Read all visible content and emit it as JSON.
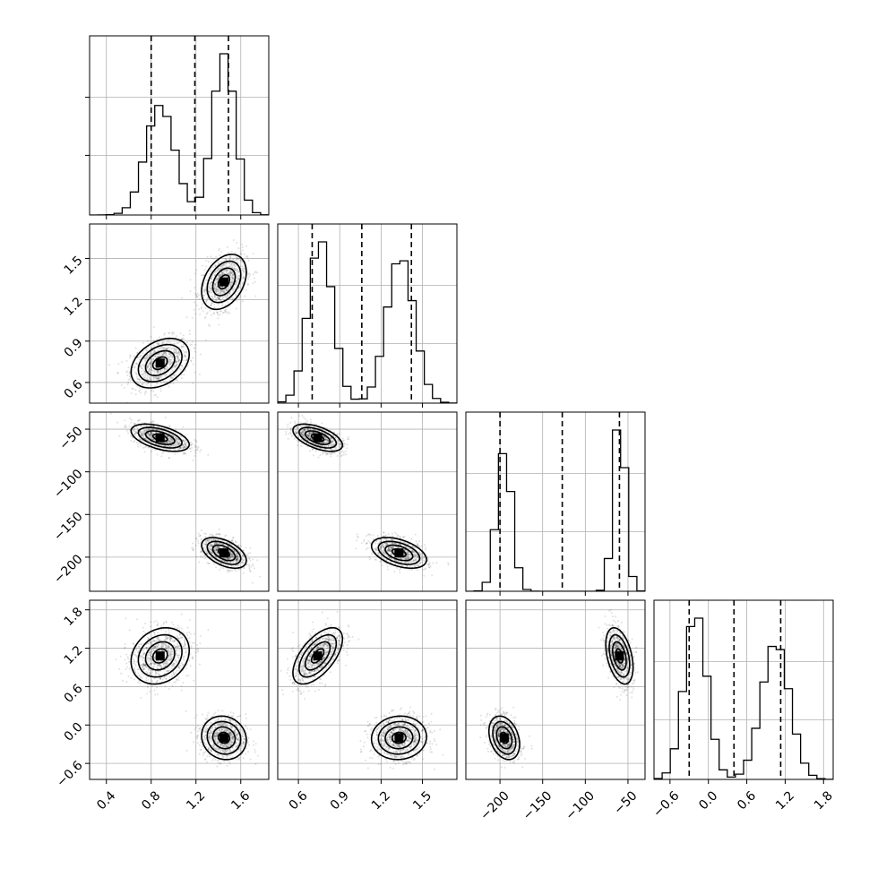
{
  "chart_data": {
    "type": "corner",
    "title": "",
    "parameters": [
      {
        "label": "",
        "range": [
          0.25,
          1.85
        ],
        "ticks": [
          "0.4",
          "0.8",
          "1.2",
          "1.6"
        ],
        "tick_values": [
          0.4,
          0.8,
          1.2,
          1.6
        ],
        "modes": [
          {
            "center": 0.88,
            "width": 0.13,
            "weight": 0.47
          },
          {
            "center": 1.45,
            "width": 0.1,
            "weight": 0.53
          }
        ],
        "quantiles": [
          0.8,
          1.19,
          1.49
        ]
      },
      {
        "label": "",
        "range": [
          0.45,
          1.75
        ],
        "ticks": [
          "0.6",
          "0.9",
          "1.2",
          "1.5"
        ],
        "tick_values": [
          0.6,
          0.9,
          1.2,
          1.5
        ],
        "modes": [
          {
            "center": 0.76,
            "width": 0.09,
            "weight": 0.5
          },
          {
            "center": 1.34,
            "width": 0.1,
            "weight": 0.5
          }
        ],
        "quantiles": [
          0.7,
          1.06,
          1.42
        ]
      },
      {
        "label": "",
        "range": [
          -240,
          -30
        ],
        "ticks": [
          "−200",
          "−150",
          "−100",
          "−50"
        ],
        "tick_values": [
          -200,
          -150,
          -100,
          -50
        ],
        "modes": [
          {
            "center": -195,
            "width": 9,
            "weight": 0.5
          },
          {
            "center": -60,
            "width": 7,
            "weight": 0.5
          }
        ],
        "quantiles": [
          -200,
          -127,
          -60
        ]
      },
      {
        "label": "",
        "range": [
          -0.85,
          1.95
        ],
        "ticks": [
          "−0.6",
          "0.0",
          "0.6",
          "1.2",
          "1.8"
        ],
        "tick_values": [
          -0.6,
          0.0,
          0.6,
          1.2,
          1.8
        ],
        "modes": [
          {
            "center": -0.2,
            "width": 0.18,
            "weight": 0.5
          },
          {
            "center": 1.05,
            "width": 0.22,
            "weight": 0.5
          }
        ],
        "quantiles": [
          -0.3,
          0.4,
          1.13
        ]
      }
    ],
    "clusters": [
      {
        "means": [
          0.88,
          0.74,
          -60,
          1.08
        ],
        "sds": [
          0.13,
          0.09,
          8,
          0.22
        ]
      },
      {
        "means": [
          1.45,
          1.33,
          -195,
          -0.2
        ],
        "sds": [
          0.1,
          0.1,
          9,
          0.17
        ]
      }
    ],
    "correlations": {
      "1-0": [
        0.35,
        0.35
      ],
      "2-0": [
        -0.5,
        -0.5
      ],
      "2-1": [
        -0.55,
        -0.45
      ],
      "3-0": [
        0.2,
        -0.1
      ],
      "3-1": [
        0.6,
        0.05
      ],
      "3-2": [
        -0.4,
        -0.3
      ]
    },
    "contour_levels": [
      "0.5",
      "1.0",
      "1.5",
      "2.0"
    ],
    "grid": true,
    "diagonal_style": "step histogram with dashed quantile lines"
  }
}
